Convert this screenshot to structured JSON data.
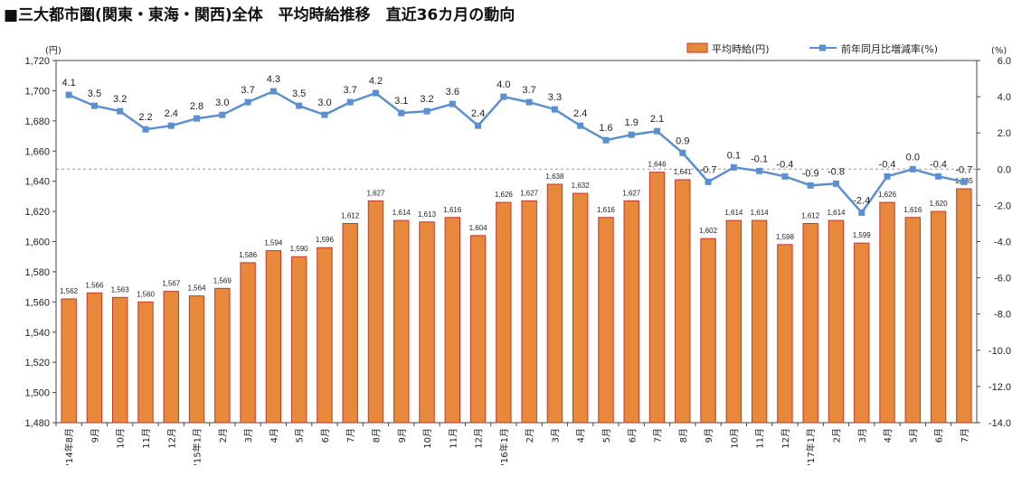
{
  "chart_data": {
    "type": "bar",
    "title": "■三大都市圏(関東・東海・関西)全体　平均時給推移　直近36カ月の動向",
    "left_unit": "(円)",
    "right_unit": "(%)",
    "colors": {
      "bar_fill": "#E8883A",
      "bar_stroke": "#C0392B",
      "line": "#5B8FD0",
      "grid": "#999999"
    },
    "categories": [
      "'14年8月",
      "9月",
      "10月",
      "11月",
      "12月",
      "'15年1月",
      "2月",
      "3月",
      "4月",
      "5月",
      "6月",
      "7月",
      "8月",
      "9月",
      "10月",
      "11月",
      "12月",
      "'16年1月",
      "2月",
      "3月",
      "4月",
      "5月",
      "6月",
      "7月",
      "8月",
      "9月",
      "10月",
      "11月",
      "12月",
      "'17年1月",
      "2月",
      "3月",
      "4月",
      "5月",
      "6月",
      "7月"
    ],
    "series": [
      {
        "name": "平均時給(円)",
        "type": "bar",
        "axis": "left",
        "values": [
          1562,
          1566,
          1563,
          1560,
          1567,
          1564,
          1569,
          1586,
          1594,
          1590,
          1596,
          1612,
          1627,
          1614,
          1613,
          1616,
          1604,
          1626,
          1627,
          1638,
          1632,
          1616,
          1627,
          1646,
          1641,
          1602,
          1614,
          1614,
          1598,
          1612,
          1614,
          1599,
          1626,
          1616,
          1620,
          1635
        ],
        "labels": [
          "1,562",
          "1,566",
          "1,563",
          "1,560",
          "1,567",
          "1,564",
          "1,569",
          "1,586",
          "1,594",
          "1,590",
          "1,596",
          "1,612",
          "1,627",
          "1,614",
          "1,613",
          "1,616",
          "1,604",
          "1,626",
          "1,627",
          "1,638",
          "1,632",
          "1,616",
          "1,627",
          "1,646",
          "1,641",
          "1,602",
          "1,614",
          "1,614",
          "1,598",
          "1,612",
          "1,614",
          "1,599",
          "1,626",
          "1,616",
          "1,620",
          "1,635"
        ]
      },
      {
        "name": "前年同月比増減率(%)",
        "type": "line",
        "axis": "right",
        "values": [
          4.1,
          3.5,
          3.2,
          2.2,
          2.4,
          2.8,
          3.0,
          3.7,
          4.3,
          3.5,
          3.0,
          3.7,
          4.2,
          3.1,
          3.2,
          3.6,
          2.4,
          4.0,
          3.7,
          3.3,
          2.4,
          1.6,
          1.9,
          2.1,
          0.9,
          -0.7,
          0.1,
          -0.1,
          -0.4,
          -0.9,
          -0.8,
          -2.4,
          -0.4,
          0.0,
          -0.4,
          -0.7
        ],
        "labels": [
          "4.1",
          "3.5",
          "3.2",
          "2.2",
          "2.4",
          "2.8",
          "3.0",
          "3.7",
          "4.3",
          "3.5",
          "3.0",
          "3.7",
          "4.2",
          "3.1",
          "3.2",
          "3.6",
          "2.4",
          "4.0",
          "3.7",
          "3.3",
          "2.4",
          "1.6",
          "1.9",
          "2.1",
          "0.9",
          "-0.7",
          "0.1",
          "-0.1",
          "-0.4",
          "-0.9",
          "-0.8",
          "-2.4",
          "-0.4",
          "0.0",
          "-0.4",
          "-0.7"
        ]
      }
    ],
    "left_axis": {
      "min": 1480,
      "max": 1720,
      "step": 20,
      "tick_labels": [
        "1,480",
        "1,500",
        "1,520",
        "1,540",
        "1,560",
        "1,580",
        "1,600",
        "1,620",
        "1,640",
        "1,660",
        "1,680",
        "1,700",
        "1,720"
      ]
    },
    "right_axis": {
      "min": -14,
      "max": 6,
      "step": 2,
      "tick_labels": [
        "-14.0",
        "-12.0",
        "-10.0",
        "-8.0",
        "-6.0",
        "-4.0",
        "-2.0",
        "0.0",
        "2.0",
        "4.0",
        "6.0"
      ]
    },
    "legend": {
      "position": "top-right",
      "entries": [
        "平均時給(円)",
        "前年同月比増減率(%)"
      ]
    },
    "reference_line": {
      "axis": "right",
      "value": 0,
      "style": "dashed"
    }
  }
}
